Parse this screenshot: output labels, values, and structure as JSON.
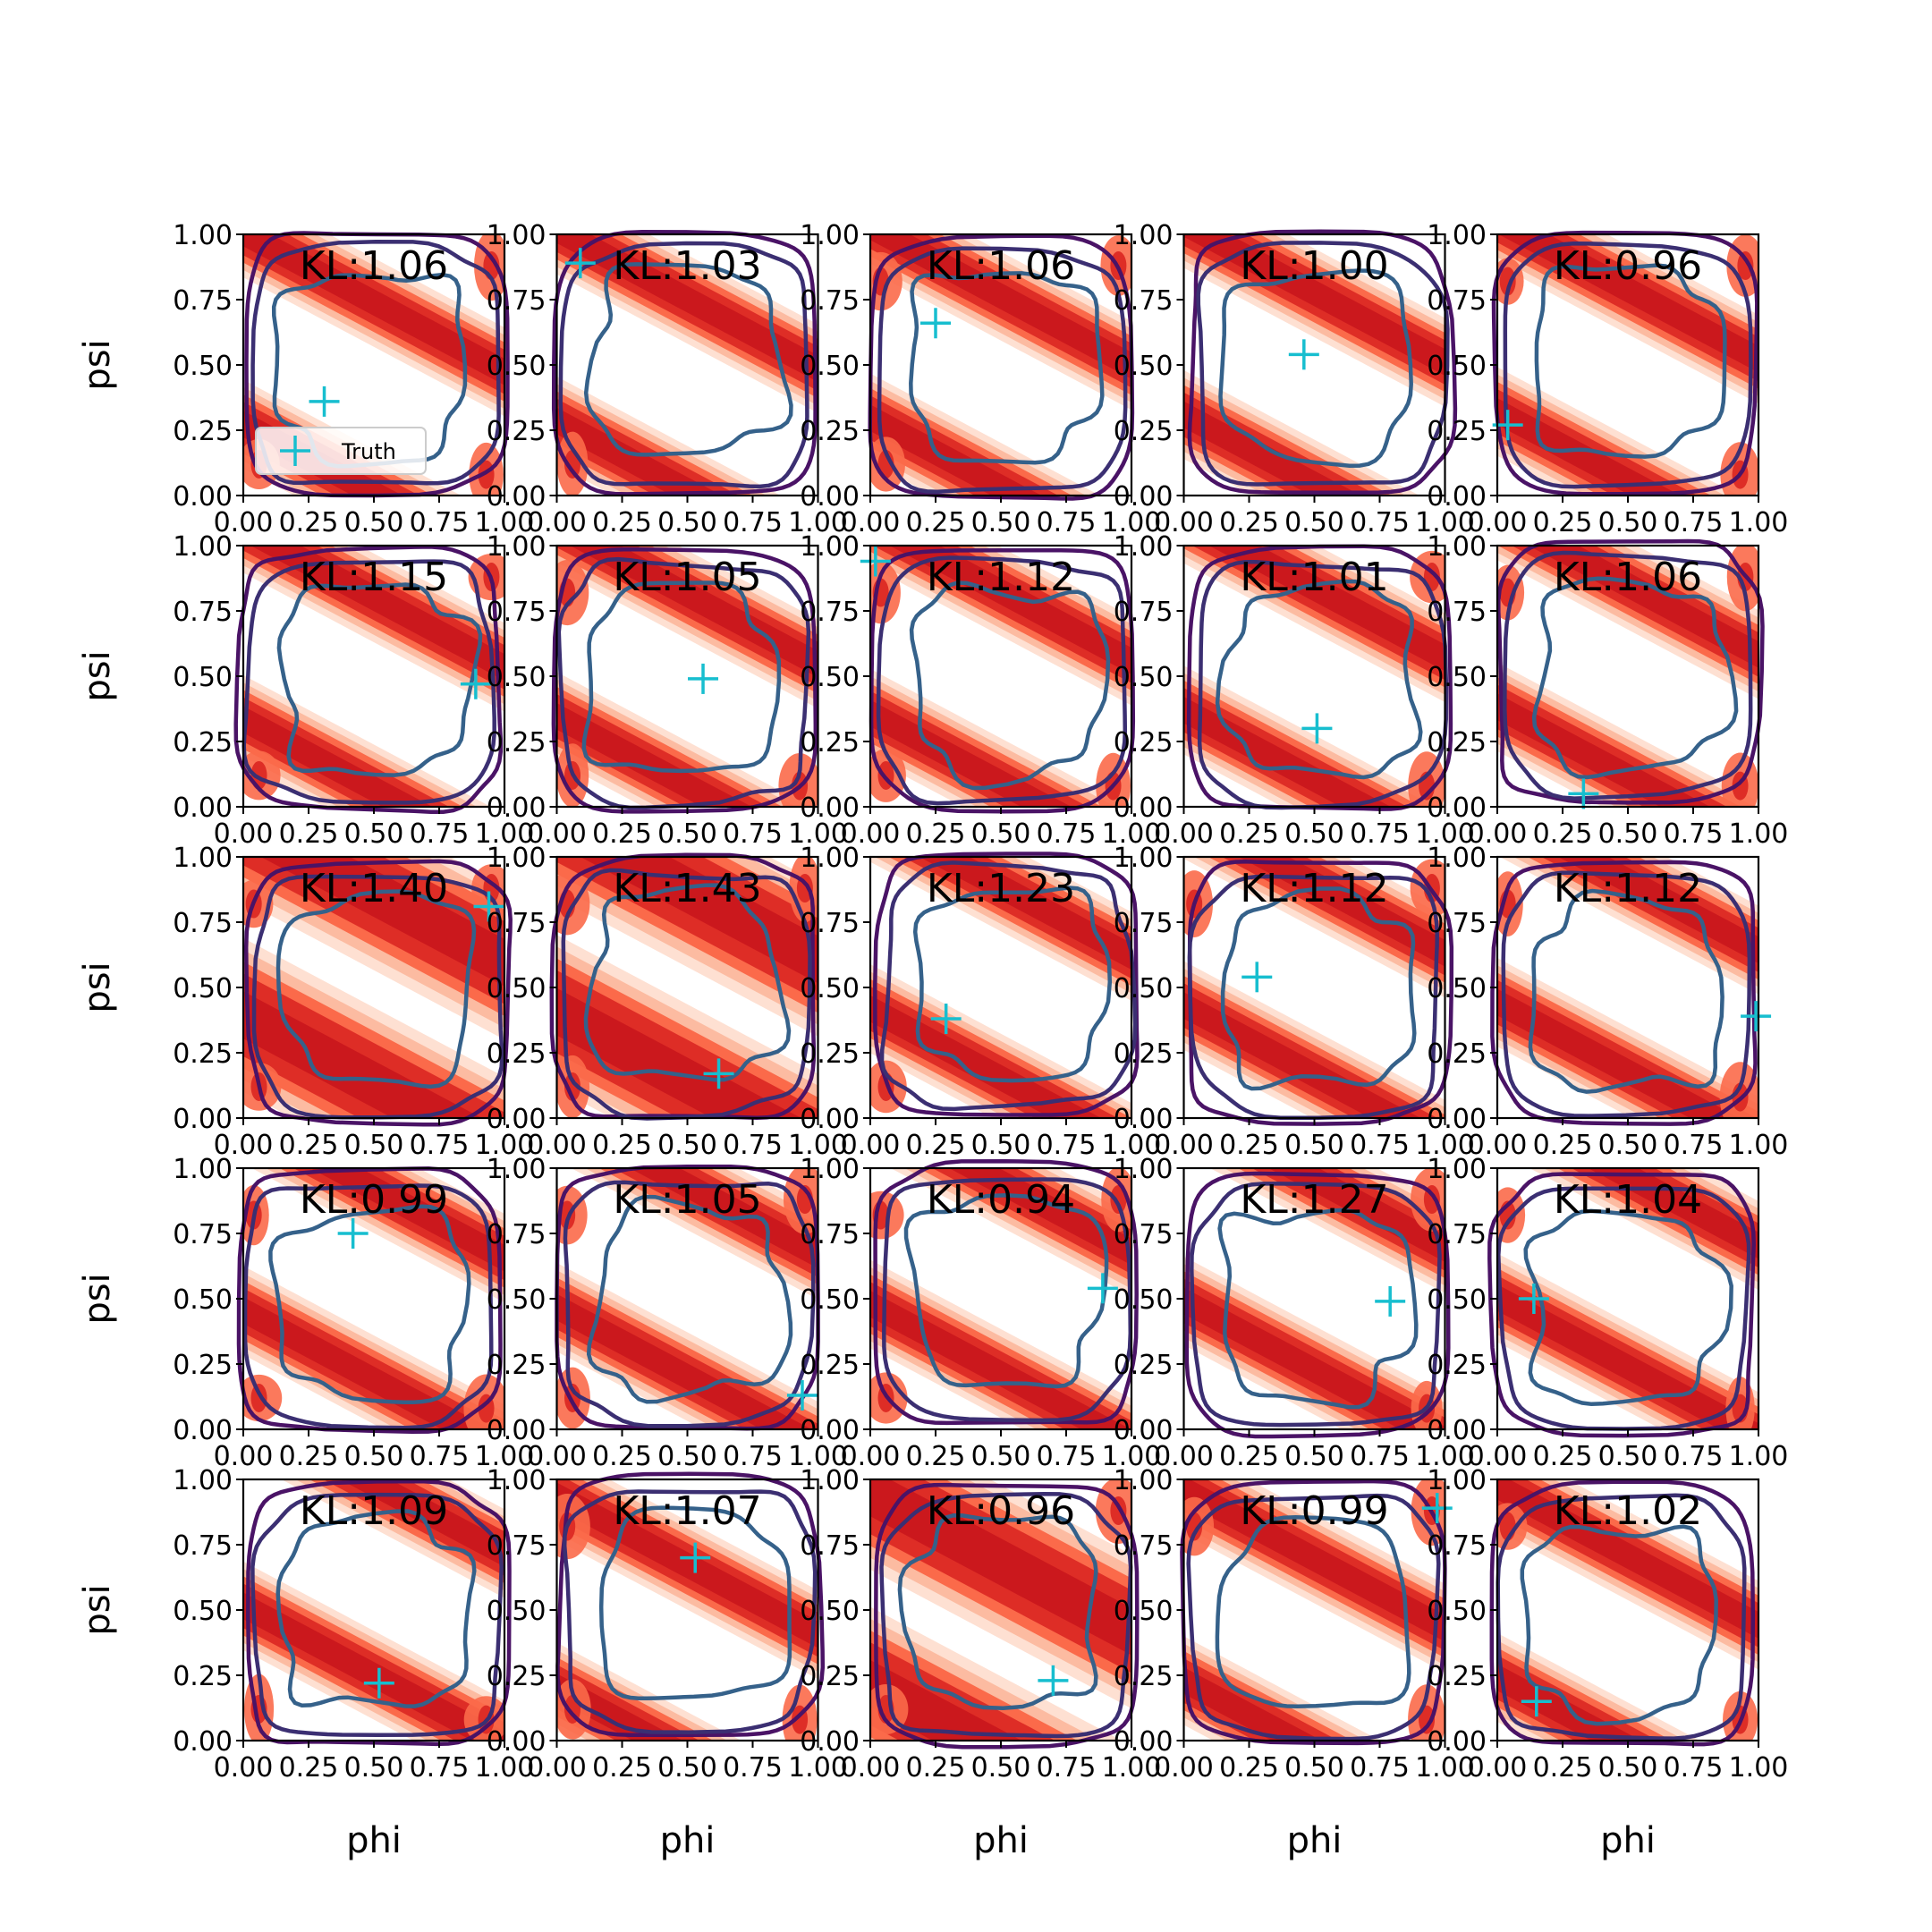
{
  "figure": {
    "type": "grid-of-density-contour-plots",
    "rows": 5,
    "cols": 5
  },
  "chart_data": {
    "type": "contour",
    "xlabel": "phi",
    "ylabel": "psi",
    "xlim": [
      0.0,
      1.0
    ],
    "ylim": [
      0.0,
      1.0
    ],
    "tick_values": [
      0.0,
      0.25,
      0.5,
      0.75,
      1.0
    ],
    "tick_labels": [
      "0.00",
      "0.25",
      "0.50",
      "0.75",
      "1.00"
    ],
    "legend": {
      "entries": [
        "Truth"
      ],
      "placement": "lower-left",
      "in_panel": 0
    },
    "colors": {
      "density_fill": [
        "#fee0d2",
        "#fcbba1",
        "#fb6a4a",
        "#de2d26",
        "#cb181d"
      ],
      "contour_lines": [
        "#4a1366",
        "#3b2f72",
        "#35618a"
      ],
      "truth_marker": "#17becf"
    },
    "panels": [
      {
        "kl": "KL:1.06",
        "truth": [
          0.31,
          0.36
        ]
      },
      {
        "kl": "KL:1.03",
        "truth": [
          0.09,
          0.89
        ]
      },
      {
        "kl": "KL:1.06",
        "truth": [
          0.25,
          0.66
        ]
      },
      {
        "kl": "KL:1.00",
        "truth": [
          0.46,
          0.54
        ]
      },
      {
        "kl": "KL:0.96",
        "truth": [
          0.04,
          0.27
        ]
      },
      {
        "kl": "KL:1.15",
        "truth": [
          0.89,
          0.47
        ]
      },
      {
        "kl": "KL:1.05",
        "truth": [
          0.56,
          0.49
        ]
      },
      {
        "kl": "KL:1.12",
        "truth": [
          0.02,
          0.94
        ]
      },
      {
        "kl": "KL:1.01",
        "truth": [
          0.51,
          0.3
        ]
      },
      {
        "kl": "KL:1.06",
        "truth": [
          0.33,
          0.05
        ]
      },
      {
        "kl": "KL:1.40",
        "truth": [
          0.94,
          0.81
        ]
      },
      {
        "kl": "KL:1.43",
        "truth": [
          0.62,
          0.17
        ]
      },
      {
        "kl": "KL:1.23",
        "truth": [
          0.29,
          0.38
        ]
      },
      {
        "kl": "KL:1.12",
        "truth": [
          0.28,
          0.54
        ]
      },
      {
        "kl": "KL:1.12",
        "truth": [
          0.99,
          0.39
        ]
      },
      {
        "kl": "KL:0.99",
        "truth": [
          0.42,
          0.75
        ]
      },
      {
        "kl": "KL:1.05",
        "truth": [
          0.94,
          0.13
        ]
      },
      {
        "kl": "KL:0.94",
        "truth": [
          0.89,
          0.54
        ]
      },
      {
        "kl": "KL:1.27",
        "truth": [
          0.79,
          0.49
        ]
      },
      {
        "kl": "KL:1.04",
        "truth": [
          0.14,
          0.5
        ]
      },
      {
        "kl": "KL:1.09",
        "truth": [
          0.52,
          0.22
        ]
      },
      {
        "kl": "KL:1.07",
        "truth": [
          0.53,
          0.7
        ]
      },
      {
        "kl": "KL:0.96",
        "truth": [
          0.7,
          0.23
        ]
      },
      {
        "kl": "KL:0.99",
        "truth": [
          0.97,
          0.89
        ]
      },
      {
        "kl": "KL:1.02",
        "truth": [
          0.15,
          0.15
        ]
      }
    ]
  }
}
